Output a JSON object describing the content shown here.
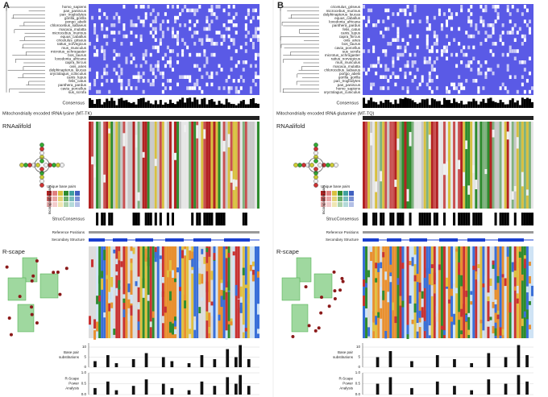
{
  "panels": [
    {
      "label": "A",
      "species": [
        "homo_sapiens",
        "pan_paniscus",
        "pan_troglodytes",
        "gorilla_gorilla",
        "pongo_abelii",
        "chlorocebus_sabaeus",
        "macaca_mulatta",
        "microcebus_murinus",
        "equus_caballus",
        "cricetulus_griseus",
        "rattus_norvegicus",
        "mus_musculus",
        "microtus_ochrogaster",
        "bos_taurus",
        "loxodonta_africana",
        "capra_hircus",
        "ovis_aries",
        "delphinapterus_leucas",
        "oryctolagus_cuniculus",
        "canis_lupus",
        "felis_catus",
        "panthera_pardus",
        "cavia_porcellus",
        "sus_scrofa"
      ],
      "consensus": "Consensus",
      "gene_title": "Mitochondrially encoded tRNA lysine (MT-TK)",
      "rnaalifold": "RNAalifold",
      "unique_pairs": "Unique base pairs",
      "incompatible_pairs": "Incompatible pairs",
      "strucconsensus": "StrucConsensus",
      "reference_positions": "Reference Positions",
      "secondary_structure": "Secondary Structure",
      "rscape": "R-scape",
      "bp_subs": {
        "label_lines": [
          "Base pair",
          "substitutions"
        ],
        "ylim": [
          0,
          12
        ],
        "yticks": [
          0,
          5,
          10
        ],
        "values": [
          0,
          3,
          0,
          0,
          6,
          0,
          2,
          0,
          0,
          0,
          4,
          0,
          0,
          7,
          0,
          0,
          0,
          5,
          0,
          3,
          0,
          0,
          0,
          2,
          0,
          0,
          6,
          0,
          0,
          4,
          0,
          0,
          9,
          0,
          5,
          11,
          0,
          4,
          0,
          0
        ]
      },
      "power": {
        "label_lines": [
          "R-Scape",
          "Power",
          "Analysis"
        ],
        "ylim": [
          0,
          1
        ],
        "yticks": [
          {
            "value": 0,
            "label": "0.0"
          },
          0.5,
          {
            "value": 1,
            "label": "1.0"
          }
        ],
        "values": [
          0,
          0.3,
          0,
          0,
          0.6,
          0,
          0.2,
          0,
          0,
          0,
          0.4,
          0,
          0,
          0.7,
          0,
          0,
          0,
          0.5,
          0,
          0.3,
          0,
          0,
          0,
          0.2,
          0,
          0,
          0.6,
          0,
          0,
          0.4,
          0,
          0,
          0.8,
          0,
          0.5,
          0.9,
          0,
          0.4,
          0,
          0
        ]
      }
    },
    {
      "label": "B",
      "species": [
        "cricetulus_griseus",
        "microcebus_murinus",
        "delphinapterus_leucas",
        "equus_caballus",
        "loxodonta_africana",
        "panthera_pardus",
        "felis_catus",
        "canis_lupus",
        "capra_hircus",
        "ovis_aries",
        "bos_taurus",
        "cavia_porcellus",
        "sus_scrofa",
        "microtus_ochrogaster",
        "rattus_norvegicus",
        "mus_musculus",
        "macaca_mulatta",
        "chlorocebus_sabaeus",
        "pongo_abelii",
        "gorilla_gorilla",
        "pan_troglodytes",
        "pan_paniscus",
        "homo_sapiens",
        "oryctolagus_cuniculus"
      ],
      "consensus": "Consensus",
      "gene_title": "Mitochondrially encoded tRNA glutamine (MT-TQ)",
      "rnaalifold": "RNAalifold",
      "unique_pairs": "Unique base pairs",
      "incompatible_pairs": "Incompatible pairs",
      "strucconsensus": "StrucConsensus",
      "reference_positions": "Reference Positions",
      "secondary_structure": "Secondary Structure",
      "rscape": "R-scape",
      "bp_subs": {
        "label_lines": [
          "Base pair",
          "substitutions"
        ],
        "ylim": [
          0,
          12
        ],
        "yticks": [
          0,
          5,
          10
        ],
        "values": [
          0,
          0,
          0,
          5,
          0,
          0,
          8,
          0,
          0,
          0,
          0,
          3,
          0,
          0,
          0,
          0,
          0,
          6,
          0,
          0,
          0,
          4,
          0,
          0,
          0,
          2,
          0,
          0,
          0,
          7,
          0,
          0,
          0,
          5,
          0,
          0,
          11,
          0,
          6,
          0
        ]
      },
      "power": {
        "label_lines": [
          "R-Scape",
          "Power",
          "Analysis"
        ],
        "ylim": [
          0,
          1
        ],
        "yticks": [
          {
            "value": 0,
            "label": "0.0"
          },
          0.5,
          {
            "value": 1,
            "label": "1.0"
          }
        ],
        "values": [
          0,
          0,
          0,
          0.5,
          0,
          0,
          0.8,
          0,
          0,
          0,
          0,
          0.3,
          0,
          0,
          0,
          0,
          0,
          0.6,
          0,
          0,
          0,
          0.4,
          0,
          0,
          0,
          0.2,
          0,
          0,
          0,
          0.7,
          0,
          0,
          0,
          0.5,
          0,
          0,
          0.9,
          0,
          0.6,
          0
        ]
      }
    }
  ]
}
